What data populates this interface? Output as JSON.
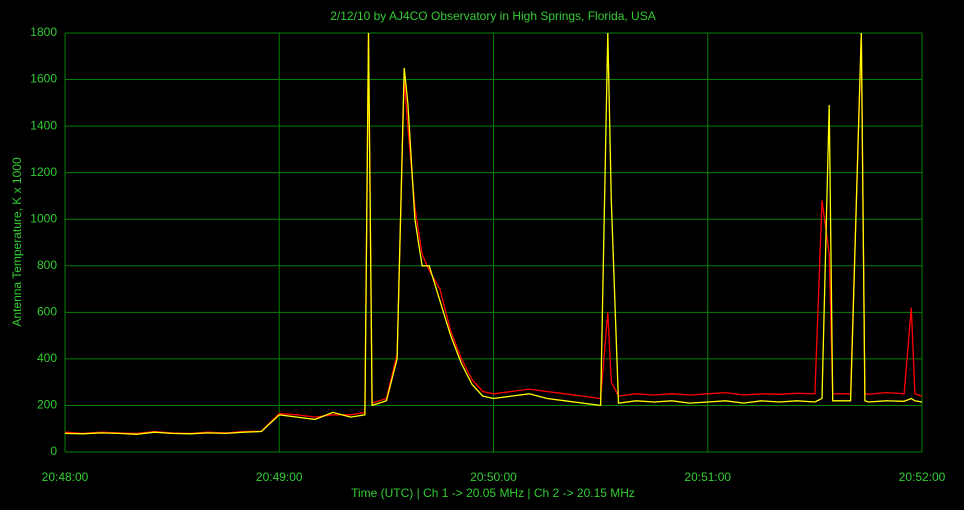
{
  "chart_data": {
    "type": "line",
    "title": "2/12/10  by  AJ4CO Observatory  in  High Springs, Florida, USA",
    "x_label": "Time (UTC)  |  Ch 1 -> 20.05 MHz  |  Ch 2 -> 20.15 MHz",
    "y_label": "Antenna Temperature, K x 1000",
    "x": [
      "20:48:00",
      "20:48:05",
      "20:48:10",
      "20:48:15",
      "20:48:20",
      "20:48:25",
      "20:48:30",
      "20:48:35",
      "20:48:40",
      "20:48:45",
      "20:48:50",
      "20:48:55",
      "20:49:00",
      "20:49:05",
      "20:49:10",
      "20:49:15",
      "20:49:20",
      "20:49:24",
      "20:49:25",
      "20:49:26",
      "20:49:30",
      "20:49:33",
      "20:49:35",
      "20:49:36",
      "20:49:38",
      "20:49:40",
      "20:49:42",
      "20:49:45",
      "20:49:48",
      "20:49:51",
      "20:49:54",
      "20:49:57",
      "20:50:00",
      "20:50:05",
      "20:50:10",
      "20:50:15",
      "20:50:20",
      "20:50:25",
      "20:50:30",
      "20:50:32",
      "20:50:33",
      "20:50:35",
      "20:50:40",
      "20:50:45",
      "20:50:50",
      "20:50:55",
      "20:51:00",
      "20:51:05",
      "20:51:10",
      "20:51:15",
      "20:51:20",
      "20:51:25",
      "20:51:30",
      "20:51:32",
      "20:51:34",
      "20:51:35",
      "20:51:40",
      "20:51:43",
      "20:51:44",
      "20:51:45",
      "20:51:50",
      "20:51:55",
      "20:51:57",
      "20:51:58",
      "20:52:00"
    ],
    "series": [
      {
        "name": "Ch 1",
        "color": "#ff0000",
        "values": [
          85,
          80,
          85,
          82,
          80,
          88,
          82,
          80,
          85,
          82,
          88,
          90,
          165,
          160,
          150,
          160,
          160,
          170,
          1800,
          210,
          230,
          420,
          1600,
          1400,
          1050,
          850,
          780,
          700,
          520,
          400,
          310,
          260,
          250,
          260,
          270,
          260,
          250,
          240,
          230,
          600,
          300,
          240,
          250,
          245,
          250,
          245,
          250,
          255,
          245,
          250,
          248,
          252,
          250,
          1080,
          850,
          250,
          250,
          1800,
          250,
          248,
          255,
          250,
          620,
          250,
          240
        ]
      },
      {
        "name": "Ch 2",
        "color": "#ffff00",
        "values": [
          80,
          78,
          82,
          80,
          76,
          85,
          80,
          78,
          82,
          80,
          85,
          88,
          160,
          150,
          140,
          170,
          150,
          160,
          1800,
          200,
          220,
          400,
          1650,
          1500,
          1000,
          800,
          800,
          650,
          500,
          380,
          290,
          240,
          230,
          240,
          250,
          230,
          220,
          210,
          200,
          1800,
          1080,
          210,
          220,
          215,
          220,
          210,
          215,
          220,
          210,
          220,
          215,
          220,
          215,
          230,
          1490,
          220,
          220,
          1800,
          220,
          215,
          220,
          218,
          230,
          220,
          215
        ]
      }
    ],
    "xlim": [
      "20:48:00",
      "20:52:00"
    ],
    "xticks": [
      "20:48:00",
      "20:49:00",
      "20:50:00",
      "20:51:00",
      "20:52:00"
    ],
    "ylim": [
      0,
      1800
    ],
    "yticks": [
      0,
      200,
      400,
      600,
      800,
      1000,
      1200,
      1400,
      1600,
      1800
    ],
    "grid": true,
    "grid_color": "#008000",
    "text_color": "#33cc33",
    "background": "#000000"
  }
}
